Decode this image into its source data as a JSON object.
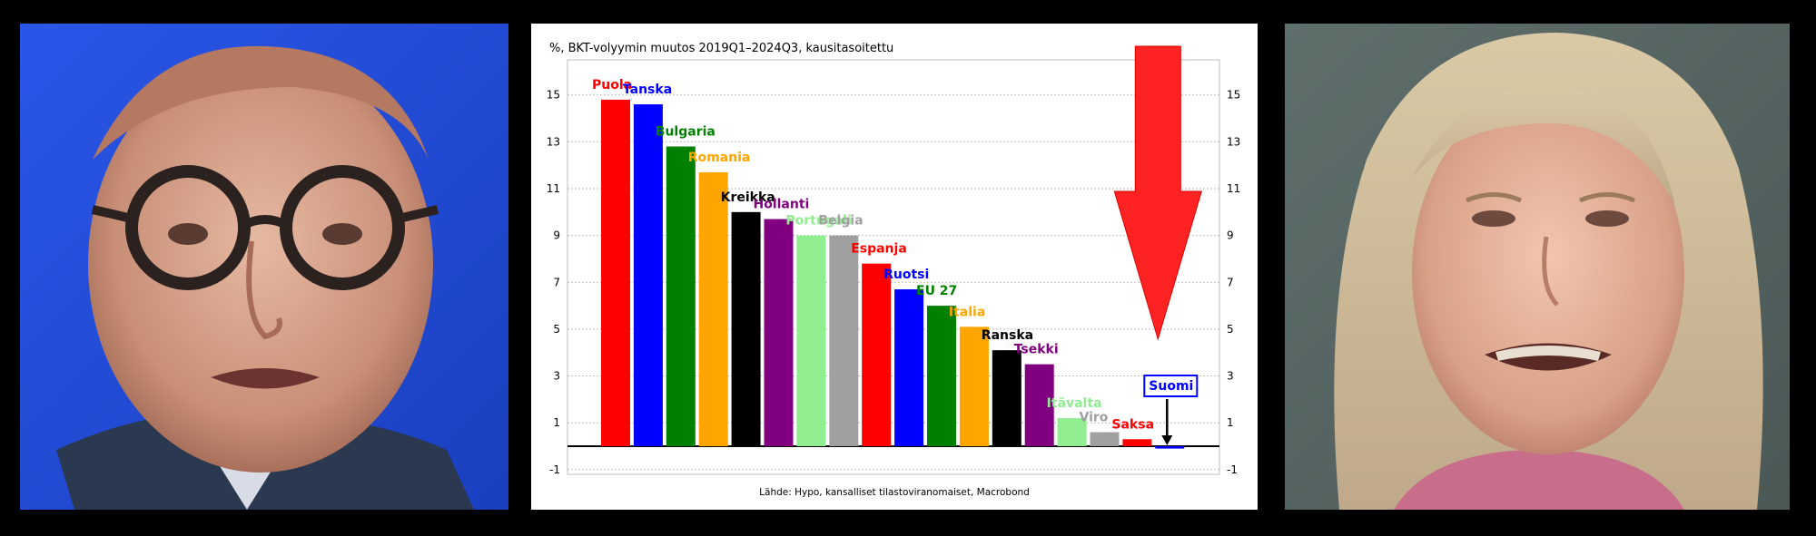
{
  "chart_data": {
    "type": "bar",
    "title": "%, BKT-volyymin muutos 2019Q1–2024Q3, kausitasoitettu",
    "source": "Lähde: Hypo, kansalliset tilastoviranomaiset, Macrobond",
    "categories": [
      "Puola",
      "Tanska",
      "Bulgaria",
      "Romania",
      "Kreikka",
      "Hollanti",
      "Portugali",
      "Belgia",
      "Espanja",
      "Ruotsi",
      "EU 27",
      "Italia",
      "Ranska",
      "Tsekki",
      "Itävalta",
      "Viro",
      "Saksa",
      "Suomi"
    ],
    "values": [
      14.8,
      14.6,
      12.8,
      11.7,
      10.0,
      9.7,
      9.0,
      9.0,
      7.8,
      6.7,
      6.0,
      5.1,
      4.1,
      3.5,
      1.2,
      0.6,
      0.3,
      -0.1
    ],
    "colors": [
      "#ff0000",
      "#0000ff",
      "#008000",
      "#ffa500",
      "#000000",
      "#800080",
      "#90ee90",
      "#a0a0a0",
      "#ff0000",
      "#0000ff",
      "#008000",
      "#ffa500",
      "#000000",
      "#800080",
      "#90ee90",
      "#a0a0a0",
      "#ff0000",
      "#0000ff"
    ],
    "yticks": [
      -1,
      1,
      3,
      5,
      7,
      9,
      11,
      13,
      15
    ],
    "ylim": [
      -1.2,
      16.5
    ],
    "grid": true,
    "highlight": "Suomi",
    "annotations": [
      "big-red-down-arrow",
      "small-black-arrow-to-Suomi"
    ]
  },
  "photos": {
    "left": "portrait-man-glasses",
    "right": "portrait-woman-blonde"
  }
}
